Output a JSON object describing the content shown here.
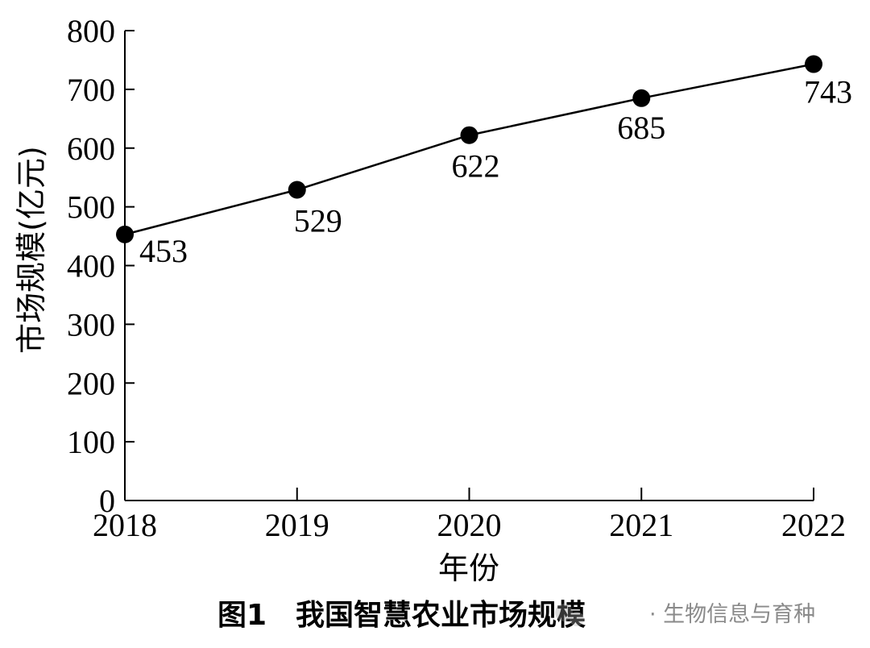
{
  "chart_data": {
    "type": "line",
    "x": [
      "2018",
      "2019",
      "2020",
      "2021",
      "2022"
    ],
    "series": [
      {
        "values": [
          453,
          529,
          622,
          685,
          743
        ]
      }
    ],
    "data_labels": [
      "453",
      "529",
      "622",
      "685",
      "743"
    ],
    "y_ticks": [
      "0",
      "100",
      "200",
      "300",
      "400",
      "500",
      "600",
      "700",
      "800"
    ],
    "ylim": [
      0,
      800
    ],
    "xlabel": "年份",
    "ylabel": "市场规模(亿元)",
    "title": "图1　我国智慧农业市场规模",
    "grid": false,
    "marker": "filled-circle",
    "line_color": "#000000"
  },
  "watermark": {
    "text": "· 生物信息与育种",
    "icon": "wechat-icon"
  }
}
